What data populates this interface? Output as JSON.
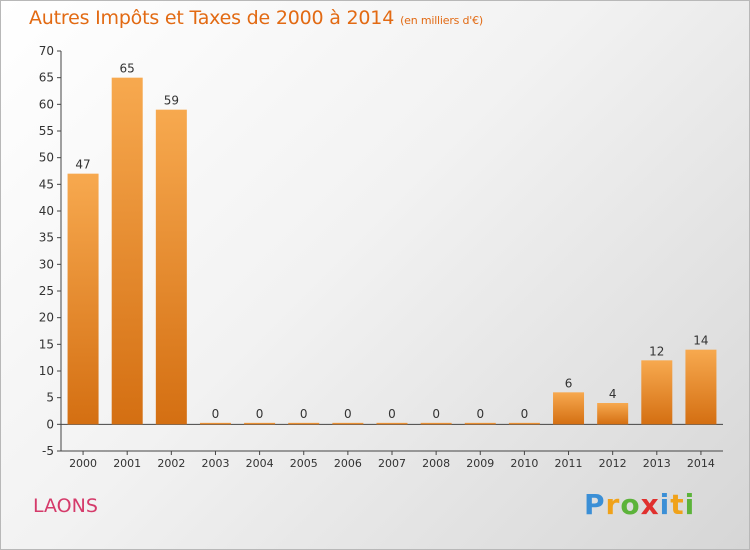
{
  "title": "Autres Impôts et Taxes de 2000 à 2014",
  "unit_note": "(en milliers d'€)",
  "place": "LAONS",
  "logo": {
    "letters": [
      "P",
      "r",
      "o",
      "x",
      "i",
      "t",
      "i"
    ],
    "colors": [
      "#3b8fd6",
      "#f0a21a",
      "#5cb33a",
      "#e0302e",
      "#3b8fd6",
      "#f0a21a",
      "#5cb33a"
    ]
  },
  "colors": {
    "bar_light": "#f7a94f",
    "bar_dark": "#d46f12",
    "title": "#e26a13",
    "place": "#d53a6a"
  },
  "chart_data": {
    "type": "bar",
    "categories": [
      "2000",
      "2001",
      "2002",
      "2003",
      "2004",
      "2005",
      "2006",
      "2007",
      "2008",
      "2009",
      "2010",
      "2011",
      "2012",
      "2013",
      "2014"
    ],
    "values": [
      47,
      65,
      59,
      0,
      0,
      0,
      0,
      0,
      0,
      0,
      0,
      6,
      4,
      12,
      14
    ],
    "ylim": [
      -5,
      70
    ],
    "yticks": [
      -5,
      0,
      5,
      10,
      15,
      20,
      25,
      30,
      35,
      40,
      45,
      50,
      55,
      60,
      65,
      70
    ],
    "grid": false,
    "legend": "none"
  }
}
